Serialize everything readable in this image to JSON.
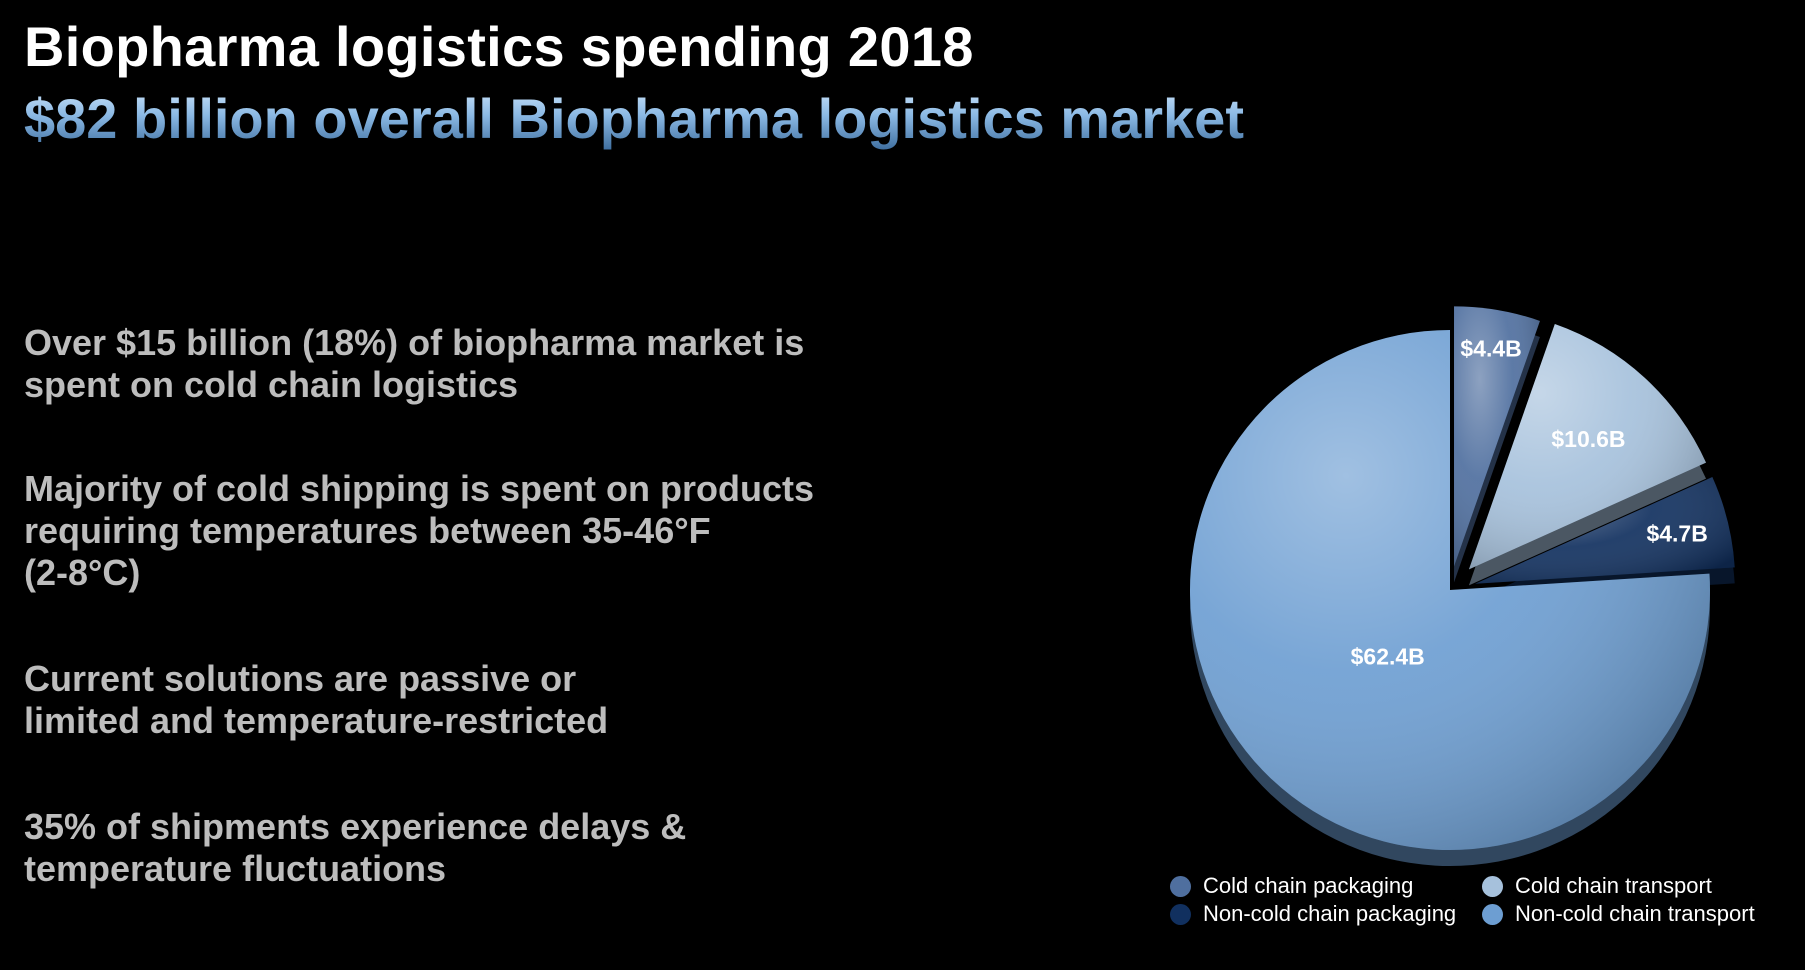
{
  "slide": {
    "title": "Biopharma logistics spending 2018",
    "subtitle": "$82 billion overall Biopharma logistics market"
  },
  "bullets": [
    {
      "line1": "Over $15 billion (18%) of biopharma market is",
      "line2": "spent on cold chain logistics",
      "line3": ""
    },
    {
      "line1": "Majority of cold shipping is spent on products",
      "line2": "requiring temperatures between 35-46°F",
      "line3": "(2-8°C)"
    },
    {
      "line1": "Current solutions are passive or",
      "line2": "limited and temperature-restricted",
      "line3": ""
    },
    {
      "line1": "35% of shipments experience delays &",
      "line2": "temperature fluctuations",
      "line3": ""
    }
  ],
  "chart_data": {
    "type": "pie",
    "title": "",
    "start_angle_deg": 0,
    "direction": "clockwise",
    "slices": [
      {
        "name": "Cold chain packaging",
        "value": 4.4,
        "label": "$4.4B",
        "color": "#4f6f9f"
      },
      {
        "name": "Cold chain transport",
        "value": 10.6,
        "label": "$10.6B",
        "color": "#a6c1dc"
      },
      {
        "name": "Non-cold chain packaging",
        "value": 4.7,
        "label": "$4.7B",
        "color": "#11305f"
      },
      {
        "name": "Non-cold chain transport",
        "value": 62.4,
        "label": "$62.4B",
        "color": "#6d9ed2"
      }
    ],
    "legend_position": "bottom"
  }
}
